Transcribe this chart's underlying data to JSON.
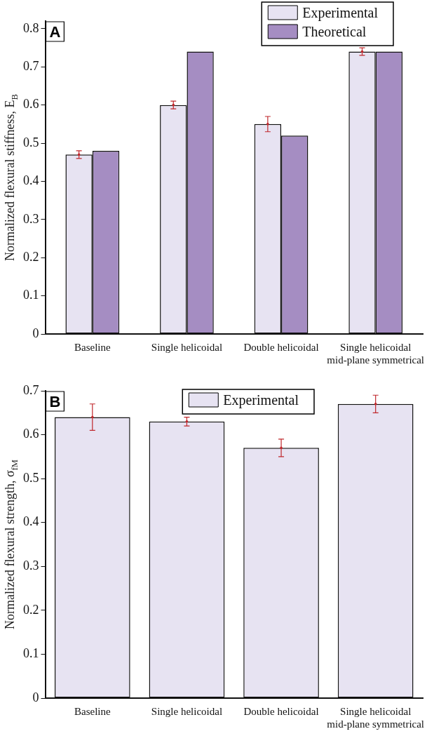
{
  "chart_data": [
    {
      "type": "bar",
      "categories": [
        "Baseline",
        "Single helicoidal",
        "Double helicoidal",
        "Single helicoidal\nmid-plane symmetrical"
      ],
      "series": [
        {
          "name": "Experimental",
          "color": "#e7e3f2",
          "values": [
            0.47,
            0.6,
            0.55,
            0.74
          ],
          "errors": [
            0.01,
            0.01,
            0.02,
            0.01
          ]
        },
        {
          "name": "Theoretical",
          "color": "#a58dc2",
          "values": [
            0.48,
            0.74,
            0.52,
            0.74
          ]
        }
      ],
      "ylabel": "Normalized flexural stiffness, E$_{B}$",
      "ylim": [
        0,
        0.82
      ],
      "yticks": [
        0,
        0.1,
        0.2,
        0.3,
        0.4,
        0.5,
        0.6,
        0.7,
        0.8
      ],
      "annotations": [
        "A"
      ],
      "legend": "top right",
      "grid": false
    },
    {
      "type": "bar",
      "categories": [
        "Baseline",
        "Single helicoidal",
        "Double helicoidal",
        "Single helicoidal\nmid-plane symmetrical"
      ],
      "series": [
        {
          "name": "Experimental",
          "color": "#e7e3f2",
          "values": [
            0.64,
            0.63,
            0.57,
            0.67
          ],
          "errors": [
            0.03,
            0.01,
            0.02,
            0.02
          ]
        }
      ],
      "ylabel": "Normalized flexural strength, σ$_{fM}$",
      "ylim": [
        0,
        0.7
      ],
      "yticks": [
        0,
        0.1,
        0.2,
        0.3,
        0.4,
        0.5,
        0.6,
        0.7
      ],
      "annotations": [
        "B"
      ],
      "legend": "top right",
      "grid": false
    }
  ]
}
